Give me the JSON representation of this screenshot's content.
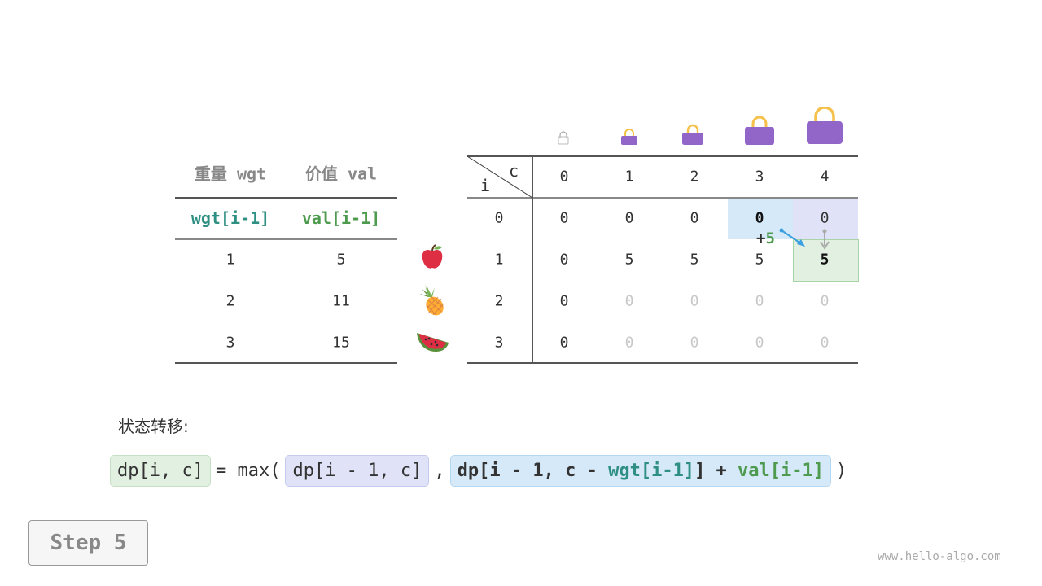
{
  "items_table": {
    "headers": [
      "重量 wgt",
      "价值 val"
    ],
    "subheaders": [
      "wgt[i-1]",
      "val[i-1]"
    ],
    "rows": [
      [
        "1",
        "5"
      ],
      [
        "2",
        "11"
      ],
      [
        "3",
        "15"
      ]
    ],
    "item_icons": [
      "apple-icon",
      "pineapple-icon",
      "watermelon-icon"
    ]
  },
  "dp_table": {
    "corner_row_label": "i",
    "corner_col_label": "c",
    "col_headers": [
      "0",
      "1",
      "2",
      "3",
      "4"
    ],
    "row_headers": [
      "0",
      "1",
      "2",
      "3"
    ],
    "rows": [
      [
        "0",
        "0",
        "0",
        "0",
        "0"
      ],
      [
        "0",
        "5",
        "5",
        "5",
        "5"
      ],
      [
        "0",
        "0",
        "0",
        "0",
        "0"
      ],
      [
        "0",
        "0",
        "0",
        "0",
        "0"
      ]
    ],
    "annotation": {
      "plus": "+",
      "value": "5"
    }
  },
  "colors": {
    "wgt": "#2f8f83",
    "val": "#4e9a4e",
    "bag": "#9166c8",
    "handle": "#f5c14a",
    "green_bg": "#e2f0e2",
    "purple_bg": "#e0e3f7",
    "blue_bg": "#d6e9f8"
  },
  "transition_label": "状态转移:",
  "formula": {
    "lhs": "dp[i, c]",
    "eq": "= max(",
    "opt1": "dp[i - 1, c]",
    "comma": ",",
    "opt2_a": "dp[i - 1, c - ",
    "opt2_wgt": "wgt[i-1]",
    "opt2_b": "] + ",
    "opt2_val": "val[i-1]",
    "close": ")"
  },
  "step_label": "Step 5",
  "watermark": "www.hello-algo.com"
}
